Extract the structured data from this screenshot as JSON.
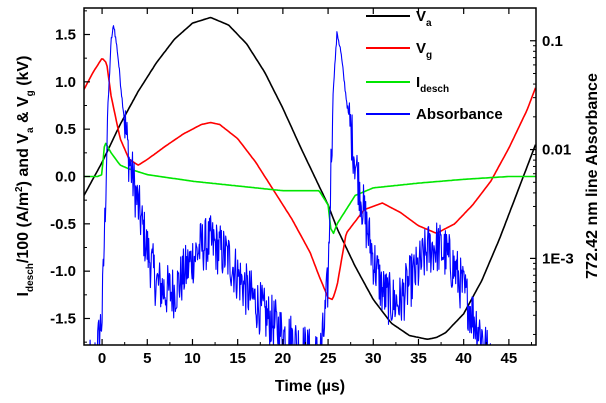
{
  "chart_data": {
    "type": "line",
    "xlabel": "Time (µs)",
    "ylabel": {
      "p1": "I",
      "s1": "desch",
      "p2": "/100 (A/m",
      "s2": "2",
      "p3": ") and V",
      "s3": "a",
      "p4": " & V",
      "s4": "g",
      "p5": " (kV)"
    },
    "ylabel_right": "772.42 nm line Absorbance",
    "xlim": [
      -2,
      48
    ],
    "ylim": [
      -1.78,
      1.78
    ],
    "ylim_right_log": [
      0.00016,
      0.2
    ],
    "x_ticks": [
      0,
      5,
      10,
      15,
      20,
      25,
      30,
      35,
      40,
      45
    ],
    "x_tick_labels": [
      "0",
      "5",
      "10",
      "15",
      "20",
      "25",
      "30",
      "35",
      "40",
      "45"
    ],
    "y_ticks": [
      -1.5,
      -1.0,
      -0.5,
      0.0,
      0.5,
      1.0,
      1.5
    ],
    "y_tick_labels": [
      "-1.5",
      "-1.0",
      "-0.5",
      "0.0",
      "0.5",
      "1.0",
      "1.5"
    ],
    "y_right_ticks": [
      0.1,
      0.01,
      0.001
    ],
    "y_right_tick_labels": [
      "0.1",
      "0.01",
      "1E-3"
    ],
    "legend_position": "top-right",
    "series": [
      {
        "name": {
          "main": "V",
          "sub": "a"
        },
        "color": "#000000",
        "axis": "left",
        "x": [
          -2,
          0,
          2,
          4,
          6,
          8,
          10,
          12,
          14,
          16,
          18,
          20,
          22,
          24,
          25,
          26,
          28,
          30,
          32,
          34,
          36,
          37,
          38,
          40,
          42,
          44,
          46,
          48
        ],
        "y": [
          -0.2,
          0.15,
          0.55,
          0.9,
          1.2,
          1.45,
          1.62,
          1.68,
          1.6,
          1.4,
          1.1,
          0.72,
          0.3,
          -0.1,
          -0.3,
          -0.55,
          -0.95,
          -1.3,
          -1.55,
          -1.68,
          -1.72,
          -1.7,
          -1.65,
          -1.45,
          -1.1,
          -0.65,
          -0.15,
          0.35
        ]
      },
      {
        "name": {
          "main": "V",
          "sub": "g"
        },
        "color": "#ff0000",
        "axis": "left",
        "x": [
          -2,
          -1,
          0,
          0.5,
          1,
          2,
          3,
          4,
          5,
          7,
          9,
          11,
          12,
          13,
          15,
          17,
          19,
          21,
          23,
          24,
          25,
          25.5,
          26,
          27,
          29,
          31,
          33,
          35,
          37,
          39,
          41,
          43,
          45,
          47,
          48
        ],
        "y": [
          0.92,
          1.1,
          1.25,
          1.2,
          0.85,
          0.4,
          0.18,
          0.12,
          0.18,
          0.32,
          0.45,
          0.55,
          0.57,
          0.55,
          0.4,
          0.15,
          -0.15,
          -0.45,
          -0.8,
          -1.05,
          -1.28,
          -1.3,
          -1.15,
          -0.6,
          -0.35,
          -0.28,
          -0.38,
          -0.52,
          -0.6,
          -0.5,
          -0.3,
          -0.05,
          0.3,
          0.7,
          0.95
        ]
      },
      {
        "name": {
          "main": "I",
          "sub": "desch"
        },
        "color": "#00e600",
        "axis": "left",
        "x": [
          -2,
          -0.5,
          0,
          0.2,
          0.4,
          1,
          2,
          3,
          5,
          10,
          15,
          20,
          24,
          25,
          25.3,
          25.6,
          26,
          27,
          28,
          30,
          35,
          40,
          45,
          48
        ],
        "y": [
          0.0,
          0.0,
          0.02,
          0.3,
          0.35,
          0.25,
          0.12,
          0.08,
          0.02,
          -0.05,
          -0.1,
          -0.15,
          -0.15,
          -0.3,
          -0.55,
          -0.6,
          -0.5,
          -0.35,
          -0.2,
          -0.12,
          -0.07,
          -0.03,
          0.0,
          0.0
        ]
      },
      {
        "name": {
          "main": "Absorbance",
          "sub": ""
        },
        "color": "#0000ff",
        "axis": "right",
        "noise": 0.25,
        "x": [
          -1.5,
          -1,
          -0.5,
          0,
          0.3,
          0.6,
          1.0,
          1.3,
          1.7,
          2.2,
          3,
          4,
          5,
          6,
          7,
          8,
          9,
          10,
          11,
          12,
          13,
          14,
          15,
          16,
          17,
          18,
          19,
          20,
          21,
          22,
          23,
          24,
          24.5,
          25,
          25.3,
          25.6,
          26,
          26.4,
          27,
          28,
          29,
          30,
          31,
          32,
          33,
          34,
          35,
          36,
          37,
          38,
          39,
          40,
          41,
          42,
          43
        ],
        "y": [
          0.0001,
          0.0001,
          0.00015,
          0.0003,
          0.002,
          0.02,
          0.1,
          0.14,
          0.08,
          0.03,
          0.008,
          0.003,
          0.0012,
          0.0006,
          0.0005,
          0.0005,
          0.0007,
          0.001,
          0.0013,
          0.0014,
          0.0012,
          0.001,
          0.0007,
          0.0005,
          0.0004,
          0.0003,
          0.00025,
          0.0002,
          0.00018,
          0.00015,
          0.00013,
          0.00012,
          0.0002,
          0.0006,
          0.006,
          0.04,
          0.12,
          0.08,
          0.03,
          0.008,
          0.0025,
          0.001,
          0.0005,
          0.0004,
          0.0004,
          0.0006,
          0.0008,
          0.0012,
          0.0013,
          0.0011,
          0.0008,
          0.0005,
          0.0003,
          0.0002,
          0.0001
        ]
      }
    ]
  }
}
